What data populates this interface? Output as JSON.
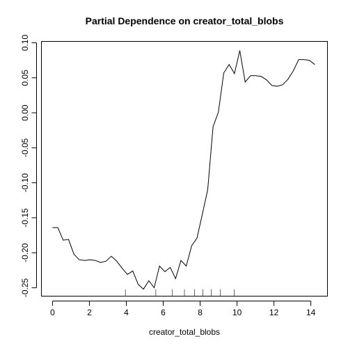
{
  "chart_data": {
    "type": "line",
    "title": "Partial Dependence on creator_total_blobs",
    "xlabel": "creator_total_blobs",
    "ylabel": "",
    "xlim": [
      -0.6,
      14.9
    ],
    "ylim": [
      -0.262,
      0.102
    ],
    "x_ticks": [
      0,
      2,
      4,
      6,
      8,
      10,
      12,
      14
    ],
    "x_tick_labels": [
      "0",
      "2",
      "4",
      "6",
      "8",
      "10",
      "12",
      "14"
    ],
    "y_ticks": [
      -0.25,
      -0.2,
      -0.15,
      -0.1,
      -0.05,
      0.0,
      0.05,
      0.1
    ],
    "y_tick_labels": [
      "-0.25",
      "-0.20",
      "-0.15",
      "-0.10",
      "-0.05",
      "0.00",
      "0.05",
      "0.10"
    ],
    "grid": false,
    "legend": "none",
    "line_color": "#000000",
    "series": [
      {
        "x": [
          0.0,
          0.29,
          0.58,
          0.87,
          1.16,
          1.45,
          1.74,
          2.03,
          2.32,
          2.61,
          2.9,
          3.19,
          3.48,
          3.77,
          4.06,
          4.35,
          4.64,
          4.93,
          5.22,
          5.51,
          5.8,
          6.09,
          6.38,
          6.67,
          6.96,
          7.25,
          7.54,
          7.83,
          8.12,
          8.41,
          8.7,
          8.99,
          9.28,
          9.57,
          9.86,
          10.15,
          10.44,
          10.73,
          11.02,
          11.31,
          11.6,
          11.89,
          12.18,
          12.47,
          12.76,
          13.05,
          13.34,
          13.63,
          13.92,
          14.21
        ],
        "values": [
          -0.164,
          -0.164,
          -0.182,
          -0.181,
          -0.202,
          -0.21,
          -0.211,
          -0.21,
          -0.211,
          -0.214,
          -0.212,
          -0.205,
          -0.212,
          -0.222,
          -0.231,
          -0.226,
          -0.245,
          -0.252,
          -0.24,
          -0.25,
          -0.219,
          -0.227,
          -0.221,
          -0.237,
          -0.211,
          -0.219,
          -0.19,
          -0.179,
          -0.145,
          -0.11,
          -0.02,
          0.001,
          0.057,
          0.069,
          0.056,
          0.089,
          0.044,
          0.053,
          0.053,
          0.052,
          0.047,
          0.039,
          0.038,
          0.04,
          0.048,
          0.06,
          0.076,
          0.076,
          0.075,
          0.069
        ]
      }
    ],
    "rug_x": [
      3.95,
      5.6,
      6.5,
      7.15,
      7.7,
      8.15,
      8.6,
      9.1,
      9.85
    ]
  }
}
